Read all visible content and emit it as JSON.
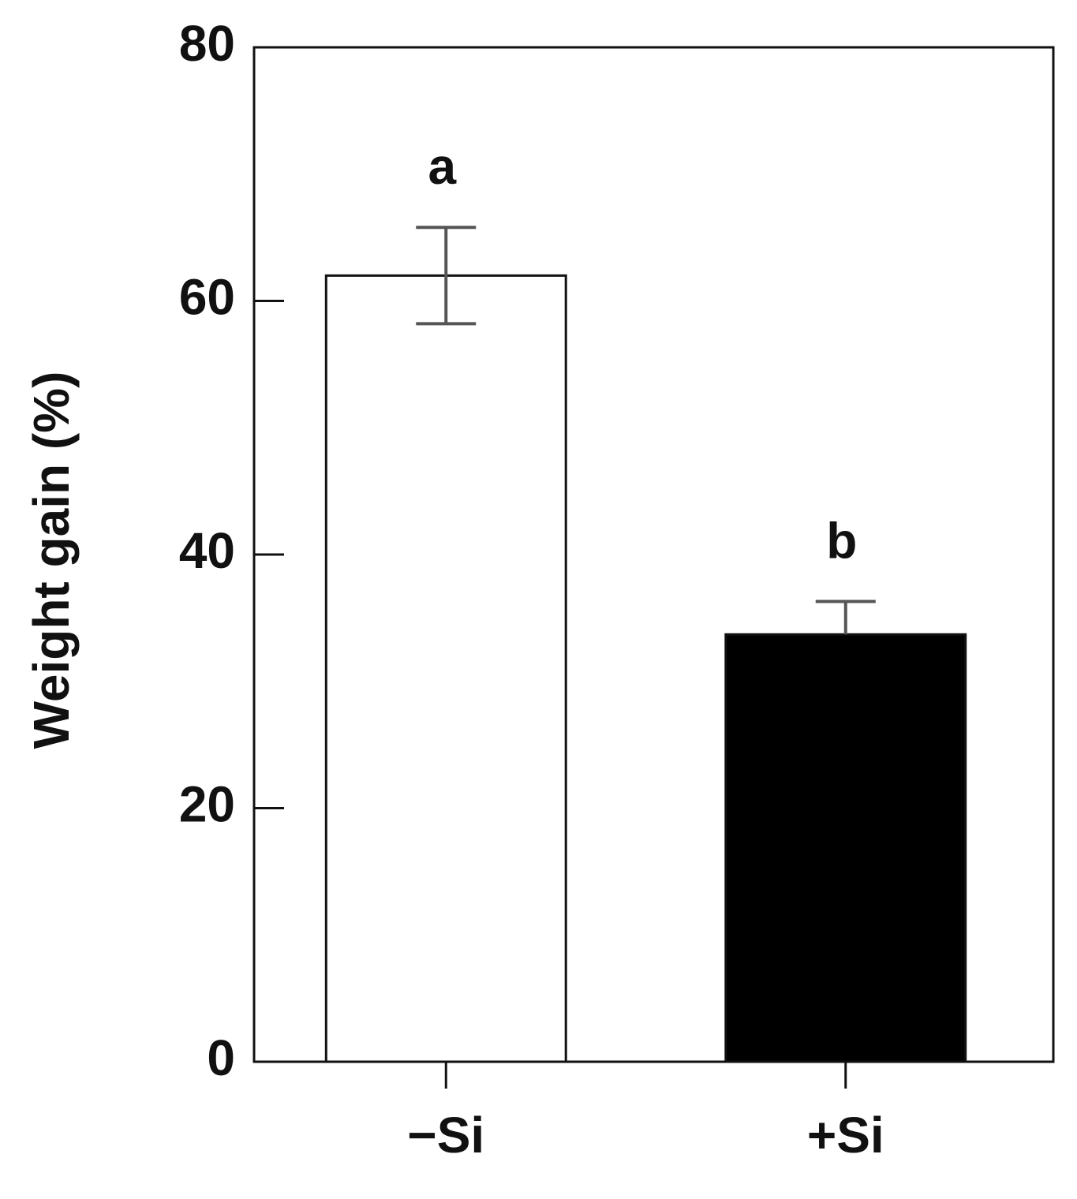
{
  "chart_data": {
    "type": "bar",
    "y_label": "Weight gain (%)",
    "categories": [
      "−Si",
      "+Si"
    ],
    "values": [
      62,
      33.7
    ],
    "errors": [
      3.8,
      2.6
    ],
    "annotations": [
      "a",
      "b"
    ],
    "colors": [
      "#ffffff",
      "#000000"
    ],
    "ylim": [
      0,
      80
    ],
    "yticks": [
      0,
      20,
      40,
      60,
      80
    ],
    "grid": false
  }
}
